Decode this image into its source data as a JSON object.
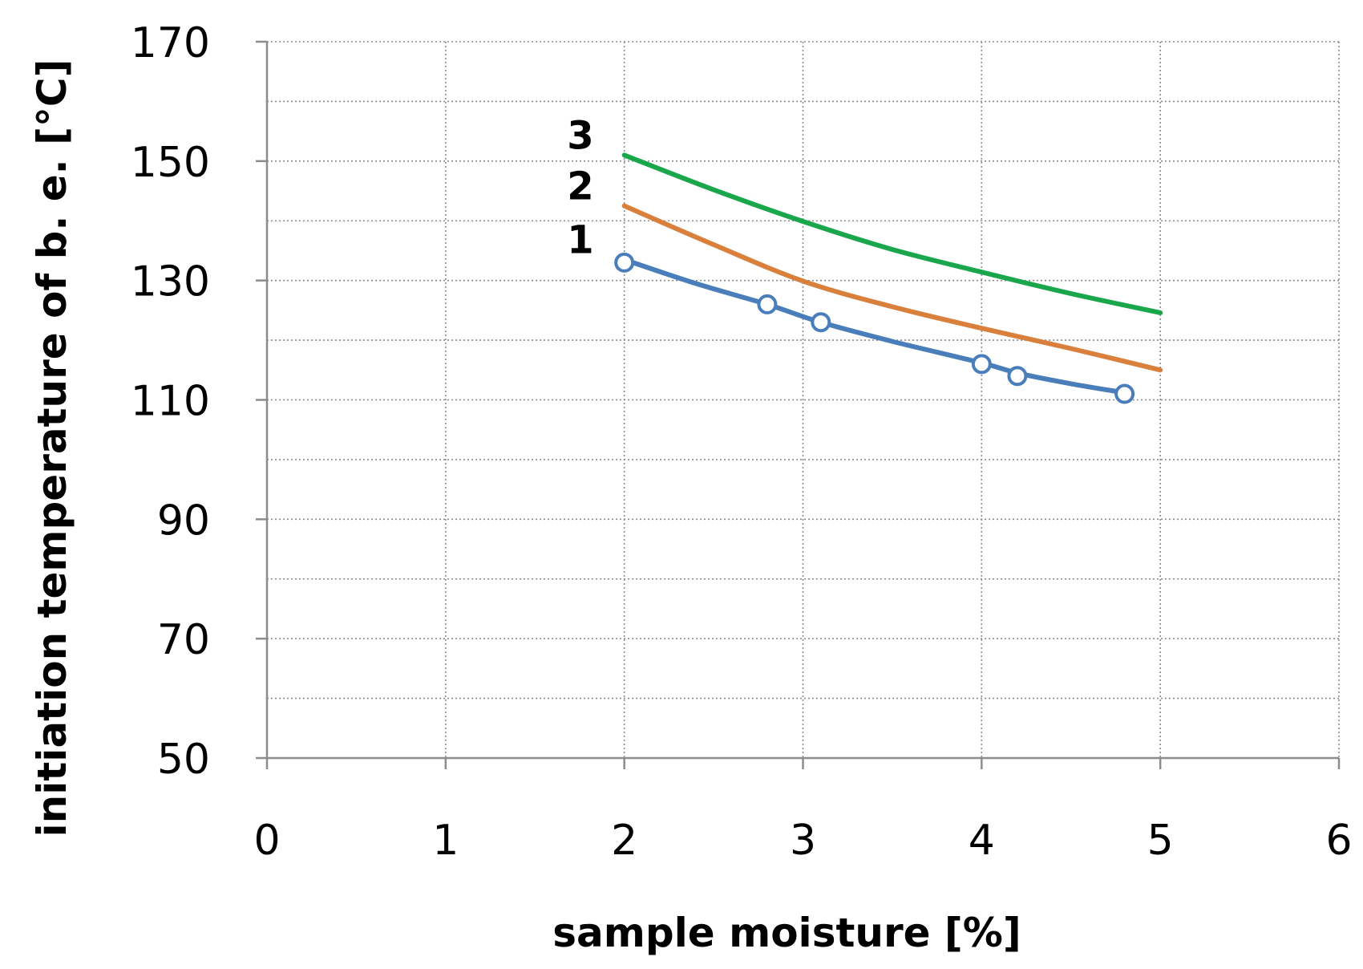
{
  "chart_data": {
    "type": "line",
    "title": "",
    "xlabel": "sample moisture [%]",
    "ylabel": "initiation temperature of b. e. [°C]",
    "xlim": [
      0,
      6
    ],
    "ylim": [
      50,
      170
    ],
    "x_ticks": [
      0,
      1,
      2,
      3,
      4,
      5,
      6
    ],
    "y_ticks": [
      50,
      70,
      90,
      110,
      130,
      150,
      170
    ],
    "x_tick_labels": [
      "0",
      "1",
      "2",
      "3",
      "4",
      "5",
      "6"
    ],
    "y_tick_labels": [
      "50",
      "70",
      "90",
      "110",
      "130",
      "150",
      "170"
    ],
    "x_minor_step": 1,
    "y_minor_step": 10,
    "grid": true,
    "legend": "none",
    "series": [
      {
        "label": "1",
        "color": "#4a7ebb",
        "markers": true,
        "x": [
          2.0,
          2.8,
          3.1,
          4.0,
          4.2,
          4.8
        ],
        "y": [
          133.0,
          126.0,
          123.0,
          116.0,
          114.0,
          111.0
        ],
        "curve_x": [
          2.0,
          2.4,
          2.8,
          3.1,
          3.5,
          4.0,
          4.2,
          4.5,
          4.8
        ],
        "curve_y": [
          133.5,
          129.5,
          126.0,
          123.0,
          119.8,
          116.2,
          114.5,
          112.7,
          111.2
        ]
      },
      {
        "label": "2",
        "color": "#d9813c",
        "markers": false,
        "x": [
          2.0,
          2.5,
          3.0,
          3.5,
          4.0,
          4.5,
          5.0
        ],
        "y": [
          142.5,
          136.0,
          129.9,
          125.6,
          122.0,
          118.6,
          115.0
        ]
      },
      {
        "label": "3",
        "color": "#1aa64a",
        "markers": false,
        "x": [
          2.0,
          2.5,
          3.0,
          3.5,
          4.0,
          4.5,
          5.0
        ],
        "y": [
          151.0,
          145.2,
          139.9,
          135.2,
          131.4,
          127.8,
          124.6
        ]
      }
    ]
  }
}
